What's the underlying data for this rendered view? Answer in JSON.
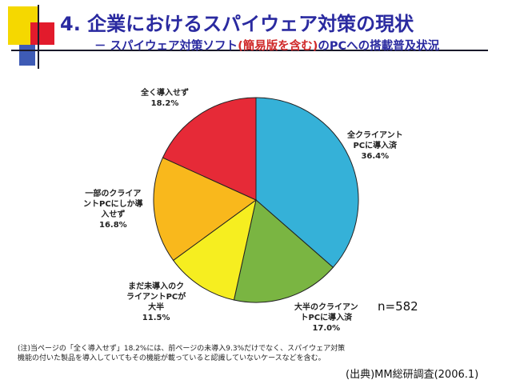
{
  "header": {
    "title": "4. 企業におけるスパイウェア対策の現状",
    "subtitle_prefix": "－ スパイウェア対策ソフト",
    "subtitle_highlight": "(簡易版を含む)",
    "subtitle_suffix": "のPCへの搭載普及状況"
  },
  "colors": {
    "title": "#2a2aa0",
    "highlight": "#d02a2a",
    "deco_yellow": "#f5d800",
    "deco_red": "#e21b2c",
    "deco_blue": "#3e5bb5"
  },
  "chart_data": {
    "type": "pie",
    "title": "",
    "slices": [
      {
        "label_lines": [
          "全クライアント",
          "PCに導入済"
        ],
        "pct_text": "36.4%",
        "value": 36.4,
        "color": "#35b1d8"
      },
      {
        "label_lines": [
          "大半のクライアン",
          "トPCに導入済"
        ],
        "pct_text": "17.0%",
        "value": 17.0,
        "color": "#7ab542"
      },
      {
        "label_lines": [
          "まだ未導入のク",
          "ライアントPCが",
          "大半"
        ],
        "pct_text": "11.5%",
        "value": 11.5,
        "color": "#f6ee20"
      },
      {
        "label_lines": [
          "一部のクライア",
          "ントPCにしか導",
          "入せず"
        ],
        "pct_text": "16.8%",
        "value": 16.8,
        "color": "#f9b81c"
      },
      {
        "label_lines": [
          "全く導入せず"
        ],
        "pct_text": "18.2%",
        "value": 18.2,
        "color": "#e62a37"
      }
    ]
  },
  "sample_size": "n=582",
  "note": "(注)当ページの「全く導入せず」18.2%には、前ページの未導入9.3%だけでなく、スパイウェア対策機能の付いた製品を導入していてもその機能が載っていると認識していないケースなどを含む。",
  "source": "(出典)MM総研調査(2006.1)"
}
